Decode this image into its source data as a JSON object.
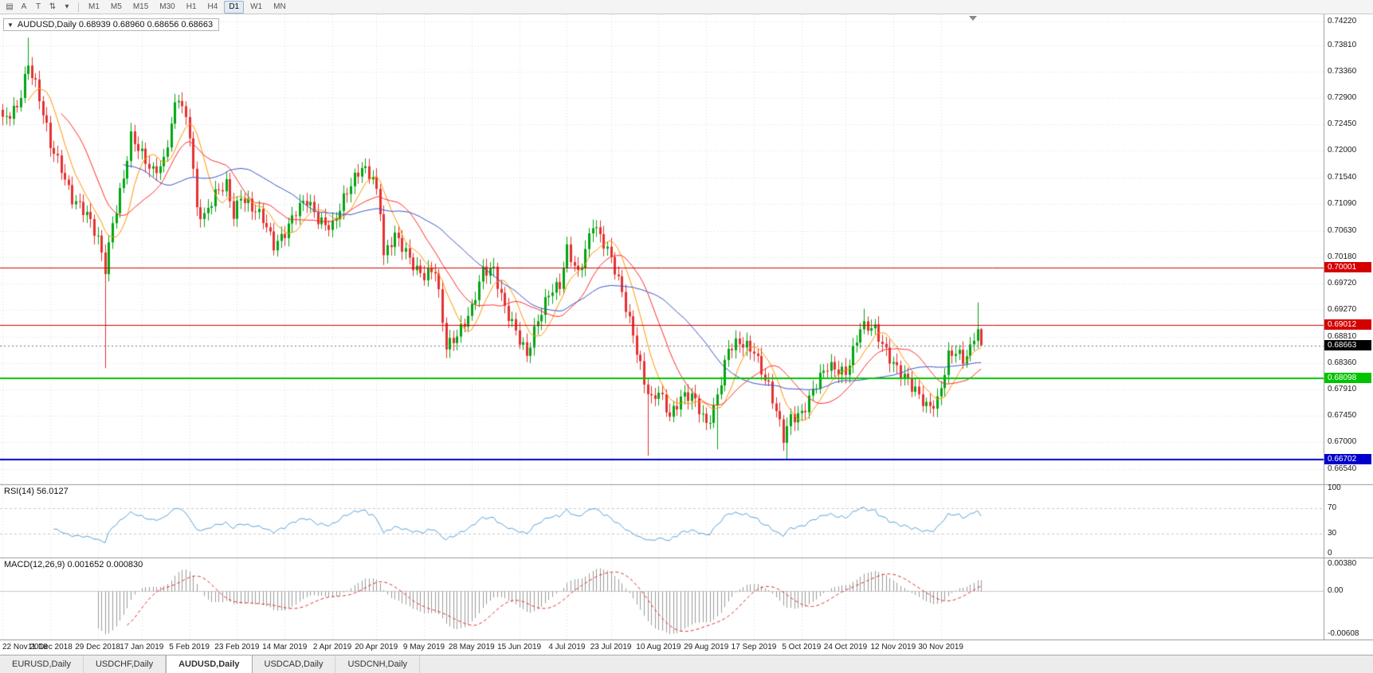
{
  "toolbar": {
    "buttons": [
      {
        "name": "chart-type-icon",
        "glyph": "▤"
      },
      {
        "name": "cursor-a-icon",
        "glyph": "A"
      },
      {
        "name": "text-tool-icon",
        "glyph": "T"
      },
      {
        "name": "zoom-scale-icon",
        "glyph": "⇅"
      },
      {
        "name": "dropdown-caret-icon",
        "glyph": "▾"
      }
    ],
    "timeframes": [
      "M1",
      "M5",
      "M15",
      "M30",
      "H1",
      "H4",
      "D1",
      "W1",
      "MN"
    ],
    "active_timeframe": "D1"
  },
  "chart": {
    "symbol_line": "AUDUSD,Daily 0.68939 0.68960 0.68656 0.68663",
    "current_price_label": "0.68663",
    "expand_caret": "▼"
  },
  "rsi": {
    "label_line": "RSI(14) 56.0127",
    "ticks": [
      {
        "label": "100",
        "value": 100
      },
      {
        "label": "70",
        "value": 70
      },
      {
        "label": "30",
        "value": 30
      },
      {
        "label": "0",
        "value": 0
      }
    ]
  },
  "macd": {
    "label_line": "MACD(12,26,9) 0.001652 0.000830",
    "ticks": [
      {
        "label": "0.00380",
        "value": 0.0038
      },
      {
        "label": "0.00",
        "value": 0
      },
      {
        "label": "-0.00608",
        "value": -0.00608
      }
    ]
  },
  "tabs": [
    {
      "label": "EURUSD,Daily",
      "active": false
    },
    {
      "label": "USDCHF,Daily",
      "active": false
    },
    {
      "label": "AUDUSD,Daily",
      "active": true
    },
    {
      "label": "USDCAD,Daily",
      "active": false
    },
    {
      "label": "USDCNH,Daily",
      "active": false
    }
  ],
  "chart_data": {
    "type": "candlestick",
    "symbol": "AUDUSD",
    "timeframe": "Daily",
    "quote": {
      "open": 0.68939,
      "high": 0.6896,
      "low": 0.68656,
      "close": 0.68663
    },
    "n_candles": 268,
    "y_ticks": [
      "0.74220",
      "0.73810",
      "0.73360",
      "0.72900",
      "0.72450",
      "0.72000",
      "0.71540",
      "0.71090",
      "0.70630",
      "0.70180",
      "0.69720",
      "0.69270",
      "0.68810",
      "0.68360",
      "0.67910",
      "0.67450",
      "0.67000",
      "0.66540"
    ],
    "y_range": [
      0.6628,
      0.7434
    ],
    "x_labels": [
      {
        "label": "22 Nov 2018",
        "i": 0
      },
      {
        "label": "11 Dec 2018",
        "i": 13
      },
      {
        "label": "29 Dec 2018",
        "i": 26
      },
      {
        "label": "17 Jan 2019",
        "i": 38
      },
      {
        "label": "5 Feb 2019",
        "i": 51
      },
      {
        "label": "23 Feb 2019",
        "i": 64
      },
      {
        "label": "14 Mar 2019",
        "i": 77
      },
      {
        "label": "2 Apr 2019",
        "i": 90
      },
      {
        "label": "20 Apr 2019",
        "i": 102
      },
      {
        "label": "9 May 2019",
        "i": 115
      },
      {
        "label": "28 May 2019",
        "i": 128
      },
      {
        "label": "15 Jun 2019",
        "i": 141
      },
      {
        "label": "4 Jul 2019",
        "i": 154
      },
      {
        "label": "23 Jul 2019",
        "i": 166
      },
      {
        "label": "10 Aug 2019",
        "i": 179
      },
      {
        "label": "29 Aug 2019",
        "i": 192
      },
      {
        "label": "17 Sep 2019",
        "i": 205
      },
      {
        "label": "5 Oct 2019",
        "i": 218
      },
      {
        "label": "24 Oct 2019",
        "i": 230
      },
      {
        "label": "12 Nov 2019",
        "i": 243
      },
      {
        "label": "30 Nov 2019",
        "i": 256
      }
    ],
    "hlines": [
      {
        "price": 0.70001,
        "label": "0.70001",
        "color": "#d40000",
        "line_width": 1
      },
      {
        "price": 0.69012,
        "label": "0.69012",
        "color": "#d40000",
        "line_width": 1
      },
      {
        "price": 0.68098,
        "label": "0.68098",
        "color": "#00c400",
        "line_width": 2
      },
      {
        "price": 0.66702,
        "label": "0.66702",
        "color": "#0000cc",
        "line_width": 2
      }
    ],
    "current_price": {
      "value": 0.68663,
      "badge_color": "#000000"
    },
    "candle_colors": {
      "up": "#00a510",
      "down": "#e53030"
    },
    "price_anchors": [
      [
        0,
        0.7246
      ],
      [
        4,
        0.728
      ],
      [
        7,
        0.7352
      ],
      [
        9,
        0.731
      ],
      [
        13,
        0.7208
      ],
      [
        16,
        0.7175
      ],
      [
        19,
        0.712
      ],
      [
        23,
        0.7085
      ],
      [
        26,
        0.7049
      ],
      [
        28,
        0.7003
      ],
      [
        30,
        0.708
      ],
      [
        33,
        0.715
      ],
      [
        35,
        0.7218
      ],
      [
        38,
        0.7195
      ],
      [
        41,
        0.717
      ],
      [
        44,
        0.718
      ],
      [
        47,
        0.727
      ],
      [
        48,
        0.729
      ],
      [
        51,
        0.7235
      ],
      [
        53,
        0.7105
      ],
      [
        55,
        0.7088
      ],
      [
        58,
        0.712
      ],
      [
        61,
        0.7141
      ],
      [
        63,
        0.7094
      ],
      [
        65,
        0.7128
      ],
      [
        68,
        0.71
      ],
      [
        71,
        0.7078
      ],
      [
        74,
        0.704
      ],
      [
        77,
        0.7065
      ],
      [
        80,
        0.7095
      ],
      [
        83,
        0.711
      ],
      [
        86,
        0.7085
      ],
      [
        90,
        0.7074
      ],
      [
        94,
        0.7125
      ],
      [
        98,
        0.7175
      ],
      [
        101,
        0.716
      ],
      [
        103,
        0.71
      ],
      [
        104,
        0.7015
      ],
      [
        107,
        0.705
      ],
      [
        110,
        0.703
      ],
      [
        113,
        0.7
      ],
      [
        115,
        0.6985
      ],
      [
        118,
        0.699
      ],
      [
        121,
        0.6865
      ],
      [
        124,
        0.689
      ],
      [
        128,
        0.6925
      ],
      [
        131,
        0.699
      ],
      [
        134,
        0.7
      ],
      [
        137,
        0.6935
      ],
      [
        141,
        0.687
      ],
      [
        143,
        0.6845
      ],
      [
        146,
        0.6915
      ],
      [
        149,
        0.696
      ],
      [
        152,
        0.6965
      ],
      [
        154,
        0.7025
      ],
      [
        157,
        0.699
      ],
      [
        161,
        0.708
      ],
      [
        163,
        0.705
      ],
      [
        166,
        0.701
      ],
      [
        169,
        0.696
      ],
      [
        172,
        0.689
      ],
      [
        175,
        0.68
      ],
      [
        177,
        0.6765
      ],
      [
        179,
        0.6785
      ],
      [
        182,
        0.675
      ],
      [
        185,
        0.678
      ],
      [
        188,
        0.6775
      ],
      [
        192,
        0.673
      ],
      [
        194,
        0.6762
      ],
      [
        198,
        0.686
      ],
      [
        201,
        0.6865
      ],
      [
        205,
        0.686
      ],
      [
        209,
        0.6797
      ],
      [
        213,
        0.6702
      ],
      [
        215,
        0.674
      ],
      [
        218,
        0.6755
      ],
      [
        221,
        0.679
      ],
      [
        225,
        0.6825
      ],
      [
        230,
        0.6825
      ],
      [
        234,
        0.6895
      ],
      [
        238,
        0.689
      ],
      [
        243,
        0.684
      ],
      [
        248,
        0.679
      ],
      [
        252,
        0.6764
      ],
      [
        255,
        0.6775
      ],
      [
        258,
        0.6845
      ],
      [
        260,
        0.685
      ],
      [
        262,
        0.6838
      ],
      [
        264,
        0.6862
      ],
      [
        266,
        0.6912
      ],
      [
        267,
        0.68663
      ]
    ],
    "wick_events": [
      {
        "i": 7,
        "high": 0.7394
      },
      {
        "i": 28,
        "low": 0.6827
      },
      {
        "i": 48,
        "high": 0.7296
      },
      {
        "i": 104,
        "low": 0.7004
      },
      {
        "i": 161,
        "high": 0.7082
      },
      {
        "i": 176,
        "low": 0.6677
      },
      {
        "i": 195,
        "low": 0.6688
      },
      {
        "i": 214,
        "low": 0.667
      },
      {
        "i": 235,
        "high": 0.6929
      },
      {
        "i": 266,
        "high": 0.694
      }
    ],
    "indicators": {
      "moving_averages": [
        {
          "type": "sma",
          "period": 8,
          "color": "#ff9500"
        },
        {
          "type": "sma",
          "period": 17,
          "color": "#ff2a2a"
        },
        {
          "type": "sma",
          "period": 34,
          "color": "#3a55c8"
        }
      ],
      "rsi": {
        "period": 14,
        "current": 56.0127,
        "color": "#5ba3d9",
        "levels": [
          70,
          30
        ]
      },
      "macd": {
        "fast": 12,
        "slow": 26,
        "signal": 9,
        "current": 0.001652,
        "signal_current": 0.00083,
        "histogram_color": "#9a9a9a",
        "signal_color": "#e03030"
      },
      "macd_range": [
        -0.0065,
        0.0042
      ]
    }
  }
}
